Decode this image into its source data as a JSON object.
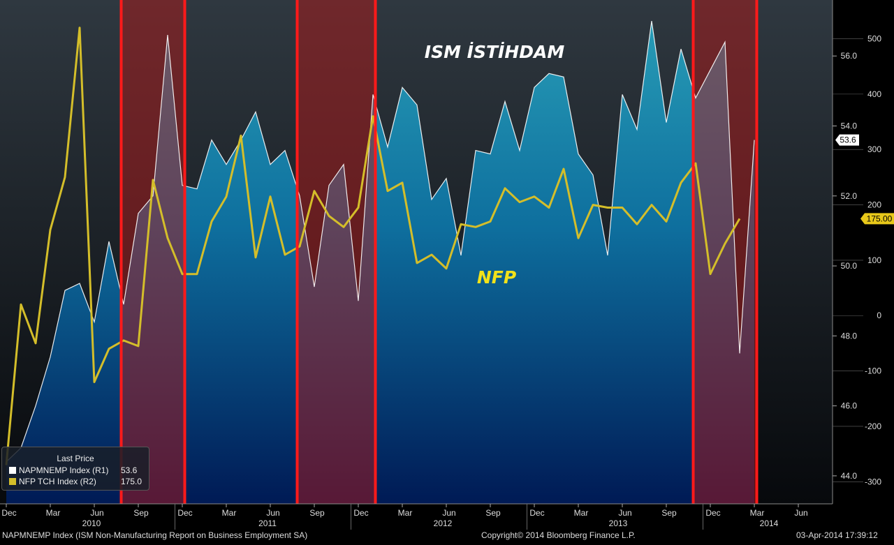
{
  "chart_data": {
    "type": "area",
    "annotations": [
      "ISM İSTİHDAM",
      "NFP"
    ],
    "x_tick_labels": [
      "Dec",
      "Mar",
      "Jun",
      "Sep",
      "Dec",
      "Mar",
      "Jun",
      "Sep",
      "Dec",
      "Mar",
      "Jun",
      "Sep",
      "Dec",
      "Mar",
      "Jun",
      "Sep",
      "Dec",
      "Mar",
      "Jun"
    ],
    "x_year_labels": [
      "2010",
      "2011",
      "2012",
      "2013",
      "2014"
    ],
    "y_right1": {
      "ticks": [
        44.0,
        46.0,
        48.0,
        50.0,
        52.0,
        54.0,
        56.0
      ],
      "range": [
        43.2,
        57.6
      ]
    },
    "y_right2": {
      "ticks": [
        -300,
        -200,
        -100,
        0,
        100,
        200,
        300,
        400,
        500
      ],
      "range": [
        -340,
        570
      ]
    },
    "shaded_regions": [
      [
        "2010-08",
        "2010-12"
      ],
      [
        "2011-08",
        "2012-01"
      ],
      [
        "2013-11",
        "2014-03"
      ]
    ],
    "series": [
      {
        "name": "NAPMNEMP Index (R1)",
        "axis": "R1",
        "color": "#ffffff",
        "x": [
          "2009-12",
          "2010-01",
          "2010-02",
          "2010-03",
          "2010-04",
          "2010-05",
          "2010-06",
          "2010-07",
          "2010-08",
          "2010-09",
          "2010-10",
          "2010-11",
          "2010-12",
          "2011-01",
          "2011-02",
          "2011-03",
          "2011-04",
          "2011-05",
          "2011-06",
          "2011-07",
          "2011-08",
          "2011-09",
          "2011-10",
          "2011-11",
          "2011-12",
          "2012-01",
          "2012-02",
          "2012-03",
          "2012-04",
          "2012-05",
          "2012-06",
          "2012-07",
          "2012-08",
          "2012-09",
          "2012-10",
          "2012-11",
          "2012-12",
          "2013-01",
          "2013-02",
          "2013-03",
          "2013-04",
          "2013-05",
          "2013-06",
          "2013-07",
          "2013-08",
          "2013-09",
          "2013-10",
          "2013-11",
          "2013-12",
          "2014-01",
          "2014-02",
          "2014-03"
        ],
        "values": [
          44.4,
          44.8,
          46.0,
          47.4,
          49.3,
          49.5,
          48.4,
          50.7,
          48.9,
          51.5,
          52.0,
          56.6,
          52.3,
          52.2,
          53.6,
          52.9,
          53.6,
          54.4,
          52.9,
          53.3,
          52.0,
          49.4,
          52.3,
          52.9,
          49.0,
          54.9,
          53.4,
          55.1,
          54.6,
          51.9,
          52.5,
          50.3,
          53.3,
          53.2,
          54.7,
          53.3,
          55.1,
          55.5,
          55.4,
          53.2,
          52.6,
          50.3,
          54.9,
          53.9,
          57.0,
          54.1,
          56.2,
          54.8,
          55.6,
          56.4,
          47.5,
          53.6
        ]
      },
      {
        "name": "NFP TCH Index (R2)",
        "axis": "R2",
        "color": "#d4be2a",
        "x": [
          "2009-12",
          "2010-01",
          "2010-02",
          "2010-03",
          "2010-04",
          "2010-05",
          "2010-06",
          "2010-07",
          "2010-08",
          "2010-09",
          "2010-10",
          "2010-11",
          "2010-12",
          "2011-01",
          "2011-02",
          "2011-03",
          "2011-04",
          "2011-05",
          "2011-06",
          "2011-07",
          "2011-08",
          "2011-09",
          "2011-10",
          "2011-11",
          "2011-12",
          "2012-01",
          "2012-02",
          "2012-03",
          "2012-04",
          "2012-05",
          "2012-06",
          "2012-07",
          "2012-08",
          "2012-09",
          "2012-10",
          "2012-11",
          "2012-12",
          "2013-01",
          "2013-02",
          "2013-03",
          "2013-04",
          "2013-05",
          "2013-06",
          "2013-07",
          "2013-08",
          "2013-09",
          "2013-10",
          "2013-11",
          "2013-12",
          "2014-01",
          "2014-02"
        ],
        "values": [
          -270,
          20,
          -50,
          155,
          250,
          520,
          -120,
          -60,
          -45,
          -55,
          245,
          140,
          75,
          75,
          170,
          215,
          325,
          105,
          215,
          110,
          125,
          225,
          180,
          160,
          195,
          360,
          225,
          240,
          95,
          110,
          85,
          165,
          160,
          170,
          230,
          205,
          215,
          195,
          265,
          140,
          200,
          195,
          195,
          165,
          200,
          170,
          240,
          275,
          75,
          130,
          175
        ]
      }
    ],
    "last_price": {
      "header": "Last Price",
      "items": [
        {
          "name": "NAPMNEMP Index  (R1)",
          "value": "53.6",
          "swatch": "#ffffff"
        },
        {
          "name": "NFP TCH Index  (R2)",
          "value": "175.0",
          "swatch": "#d4be2a"
        }
      ]
    },
    "last_value_tags": {
      "r1": "53.6",
      "r2": "175.00"
    },
    "colors": {
      "shade_fill": "#b01818",
      "shade_border": "#ff1a1a",
      "area_top": "#2aa0b8",
      "area_bottom": "#001a55"
    }
  },
  "footer": {
    "left": "NAPMNEMP Index (ISM Non-Manufacturing Report on Business Employment SA)",
    "center": "Copyright© 2014 Bloomberg Finance L.P.",
    "right": "03-Apr-2014 17:39:12"
  }
}
